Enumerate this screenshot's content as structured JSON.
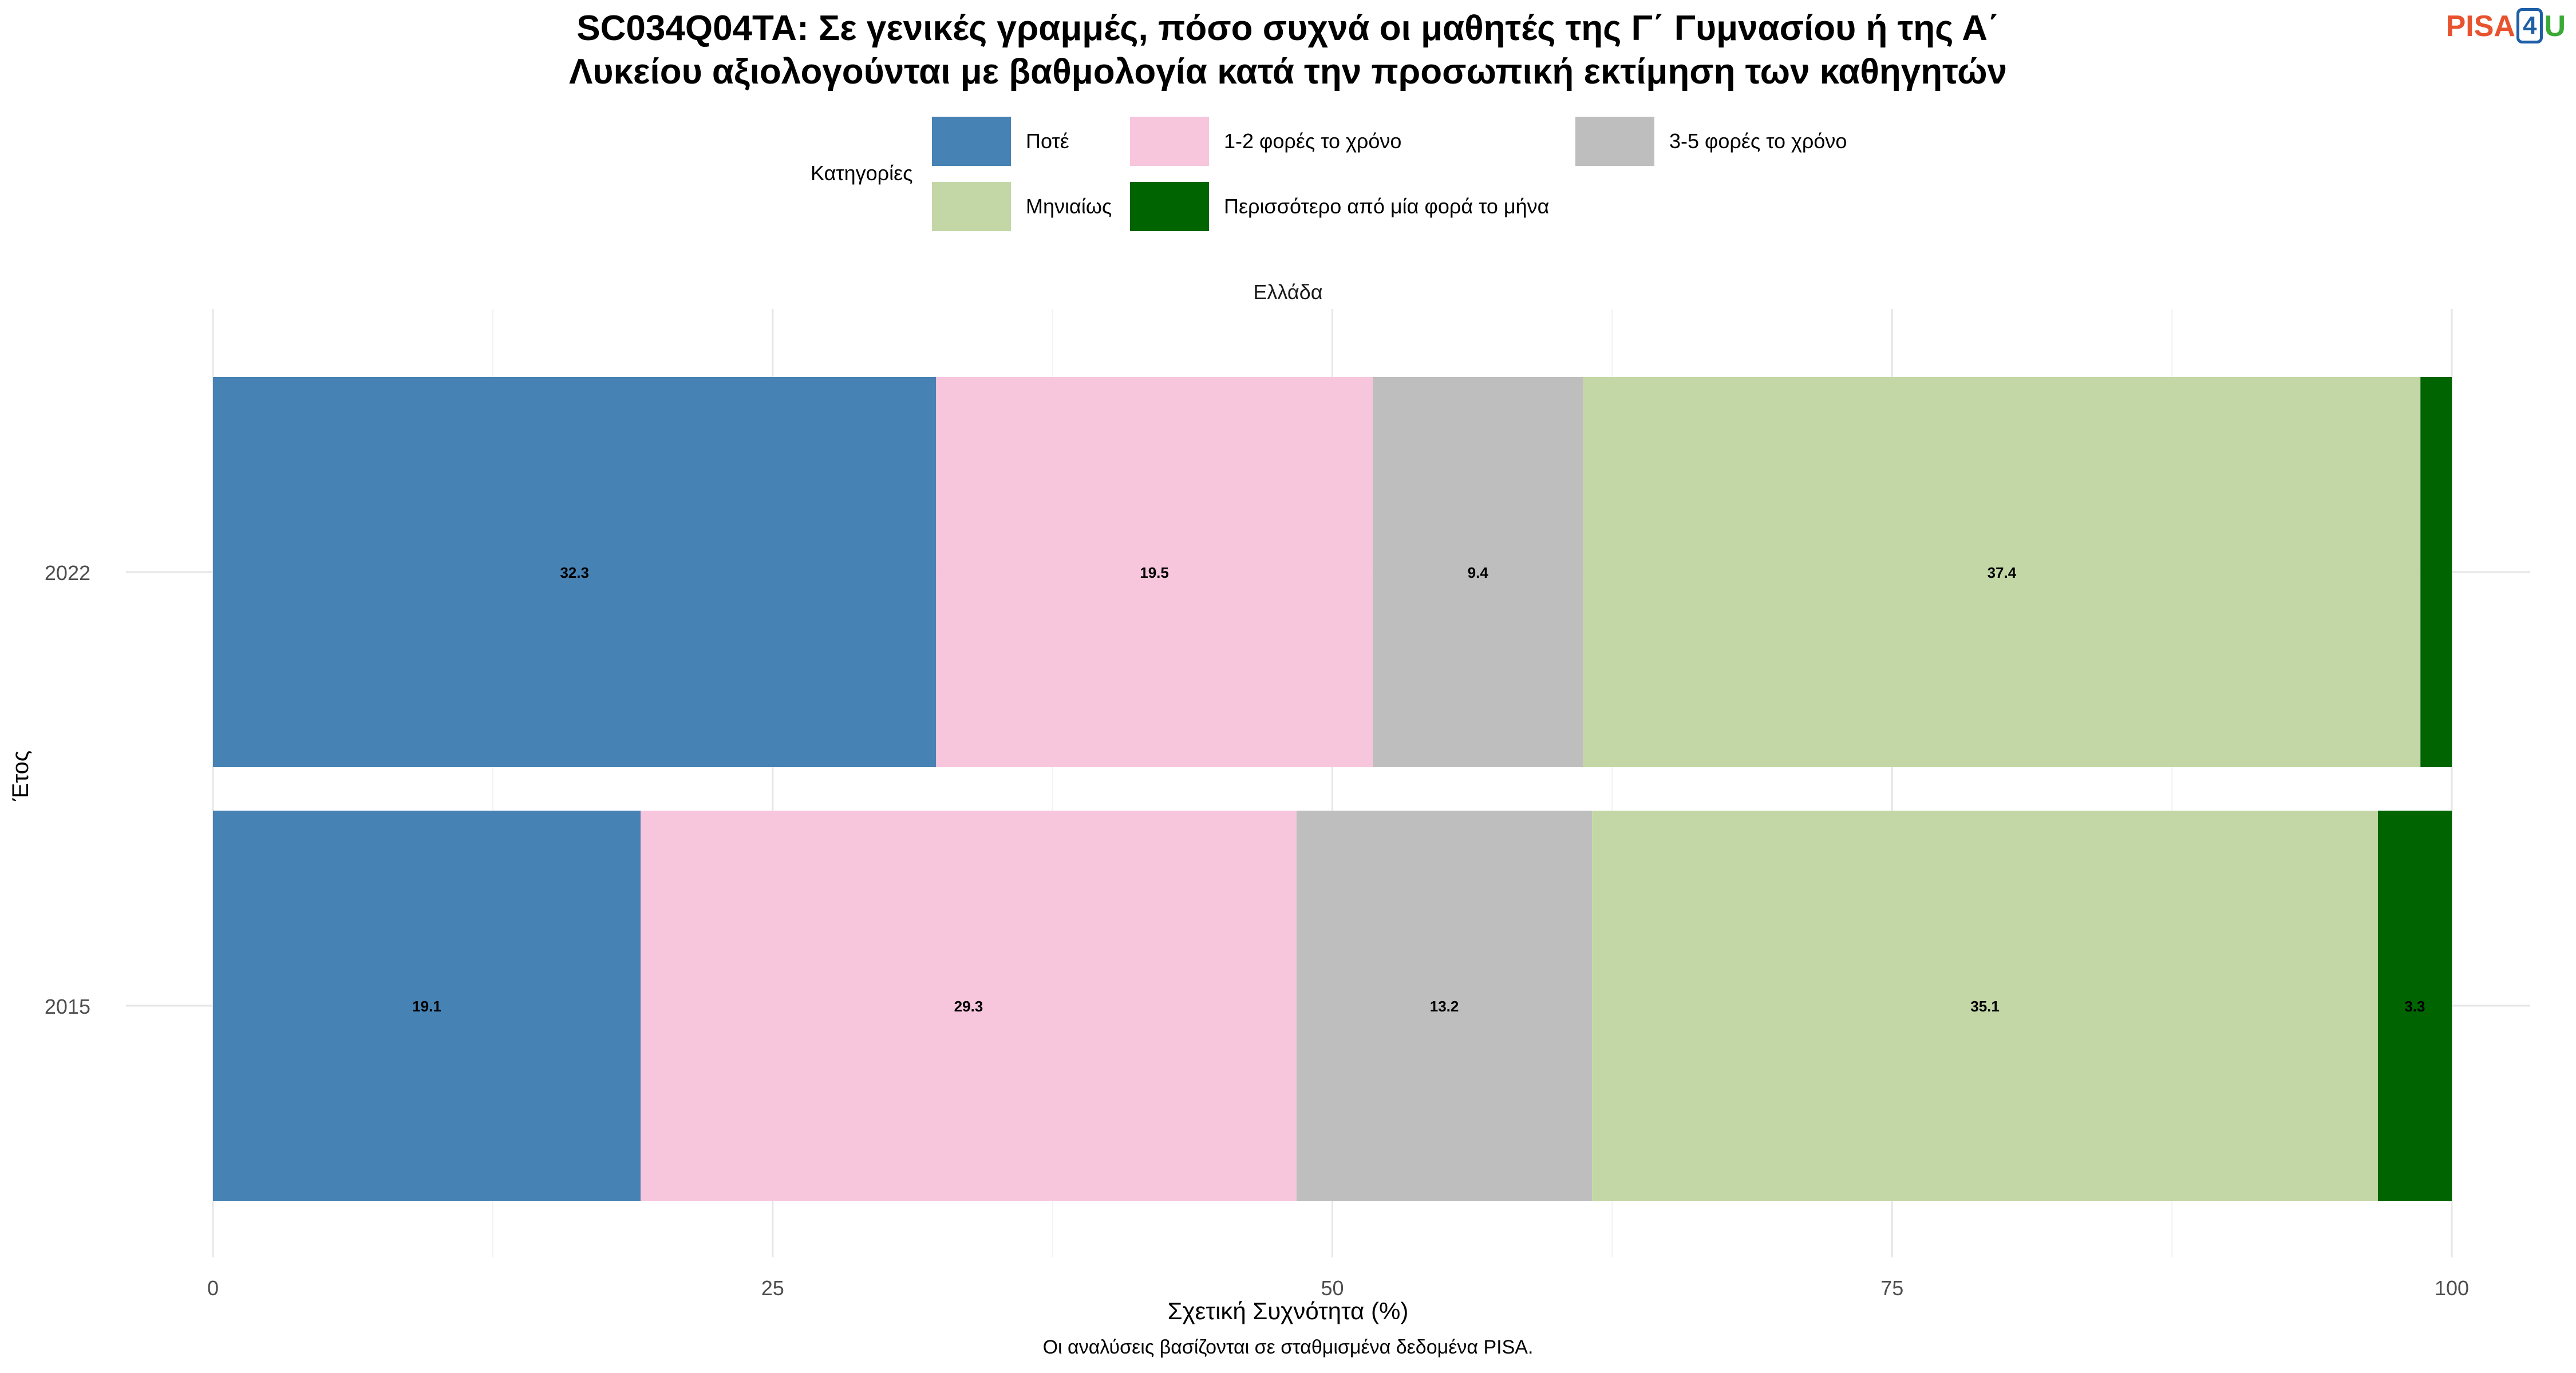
{
  "header": {
    "title_line1": "SC034Q04TA: Σε γενικές γραμμές, πόσο συχνά οι μαθητές της Γ΄ Γυμνασίου ή της Α΄",
    "title_line2": "Λυκείου αξιολογούνται με βαθμολογία κατά την προσωπική εκτίμηση των καθηγητών",
    "logo_pisa": "PISA",
    "logo_four": "4",
    "logo_u": "U"
  },
  "legend": {
    "title": "Κατηγορίες",
    "items": [
      {
        "label": "Ποτέ",
        "color": "#4682b4"
      },
      {
        "label": "1-2 φορές το χρόνο",
        "color": "#f7c6dc"
      },
      {
        "label": "3-5 φορές το χρόνο",
        "color": "#bebebe"
      },
      {
        "label": "Μηνιαίως",
        "color": "#c3d7a6"
      },
      {
        "label": "Περισσότερο από μία φορά το μήνα",
        "color": "#006400"
      }
    ]
  },
  "facet_label": "Ελλάδα",
  "axis": {
    "xlabel": "Σχετική Συχνότητα (%)",
    "ylabel": "Έτος"
  },
  "caption": "Οι αναλύσεις βασίζονται σε σταθμισμένα δεδομένα PISA.",
  "chart_data": {
    "type": "bar",
    "orientation": "horizontal",
    "stacked": true,
    "categories": [
      "2022",
      "2015"
    ],
    "series": [
      {
        "name": "Ποτέ",
        "values": [
          32.3,
          19.1
        ],
        "labels": [
          "32.3",
          "19.1"
        ]
      },
      {
        "name": "1-2 φορές το χρόνο",
        "values": [
          19.5,
          29.3
        ],
        "labels": [
          "19.5",
          "29.3"
        ]
      },
      {
        "name": "3-5 φορές το χρόνο",
        "values": [
          9.4,
          13.2
        ],
        "labels": [
          "9.4",
          "13.2"
        ]
      },
      {
        "name": "Μηνιαίως",
        "values": [
          37.4,
          35.1
        ],
        "labels": [
          "37.4",
          "35.1"
        ]
      },
      {
        "name": "Περισσότερο από μία φορά το μήνα",
        "values": [
          1.4,
          3.3
        ],
        "labels": [
          "",
          "3.3"
        ]
      }
    ],
    "xlim": [
      0,
      100
    ],
    "xticks": [
      0,
      25,
      50,
      75,
      100
    ],
    "grid": true
  }
}
